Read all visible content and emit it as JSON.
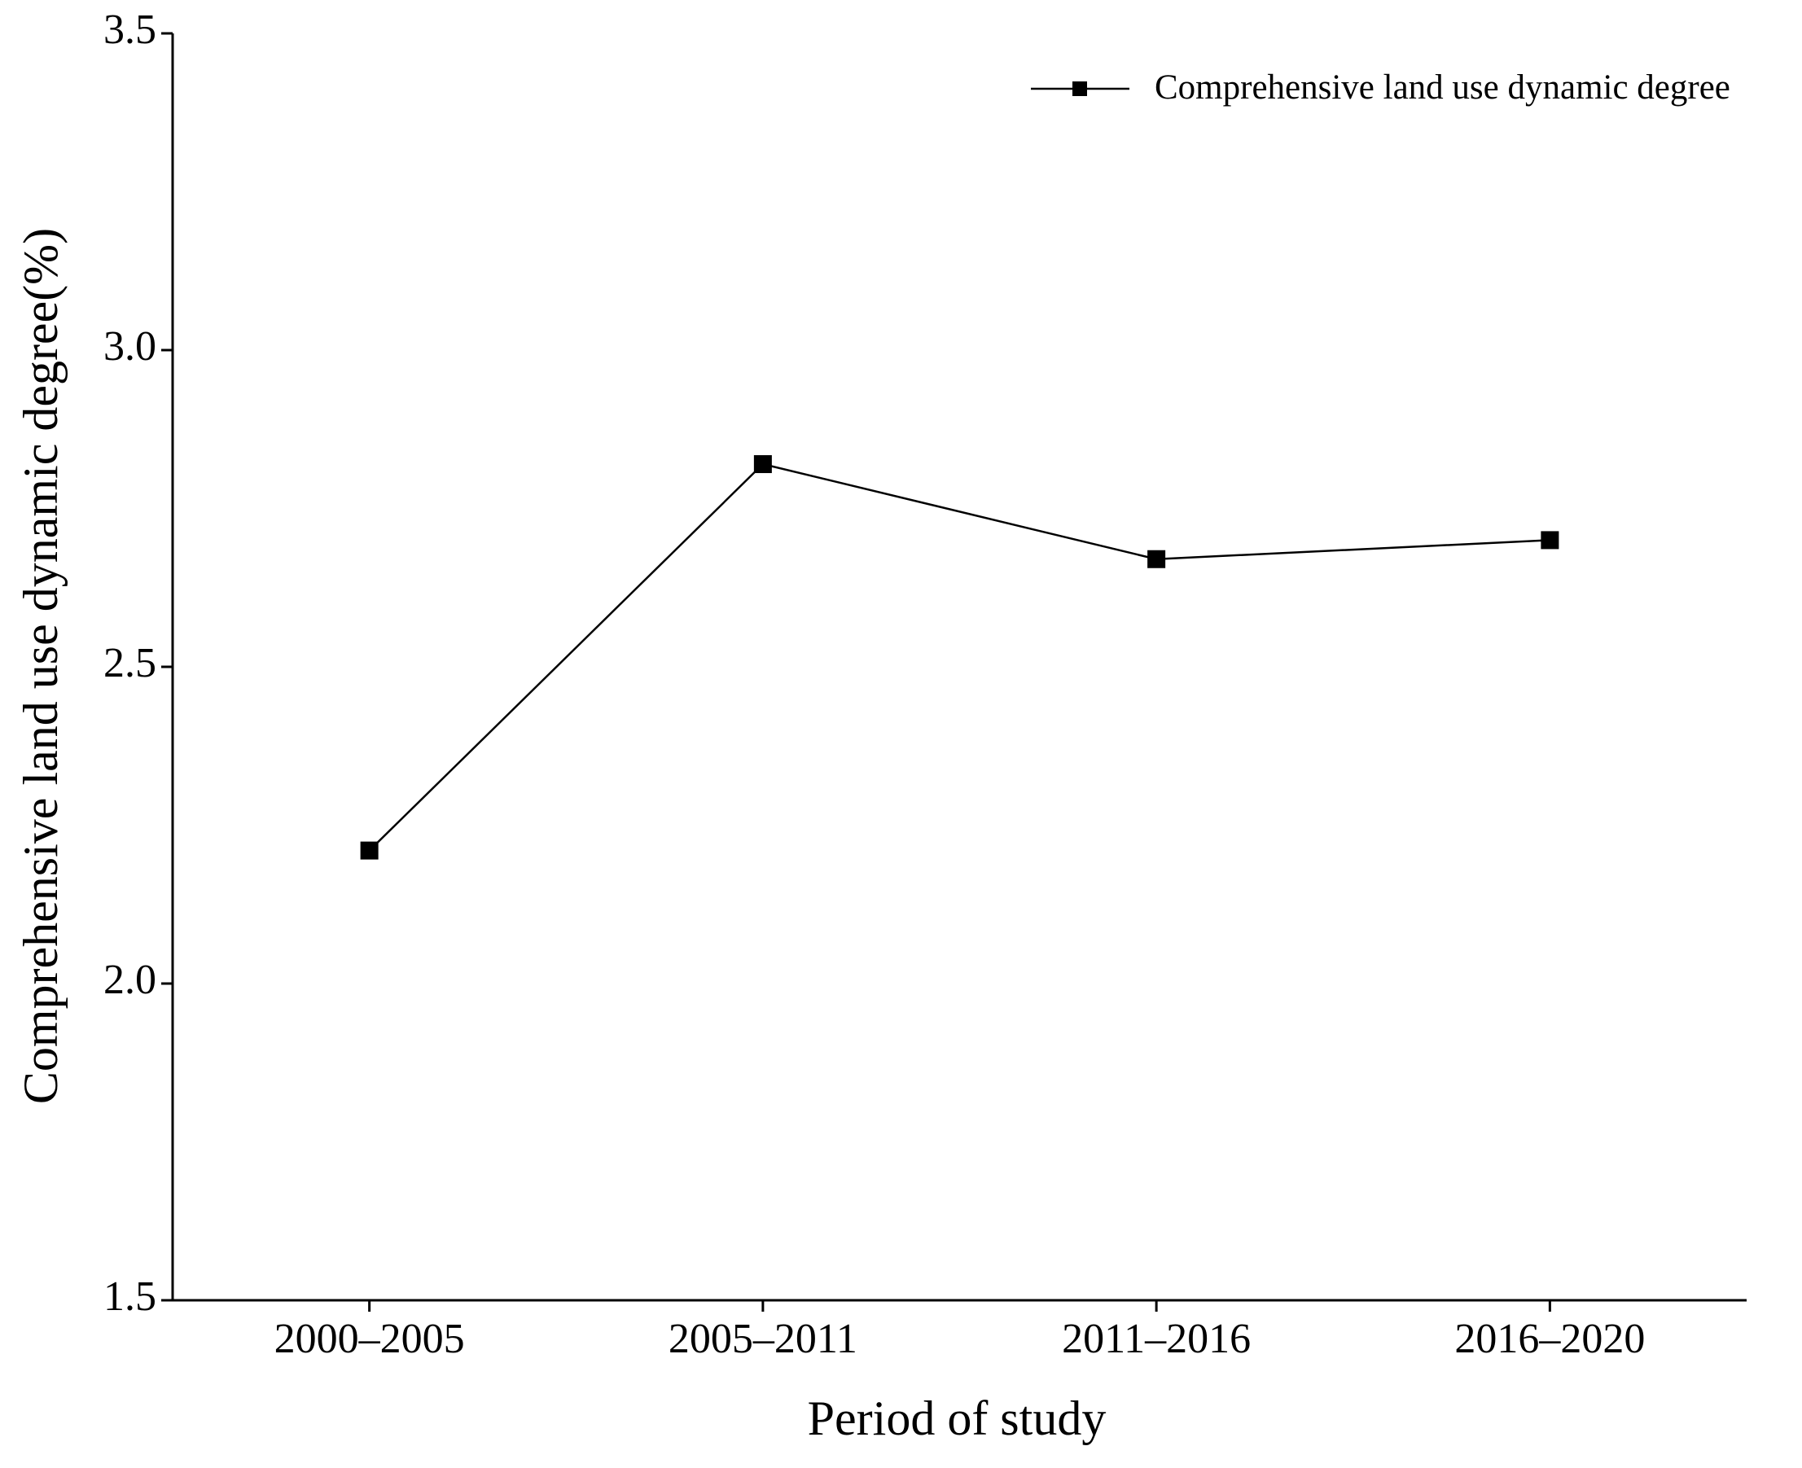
{
  "chart_data": {
    "type": "line",
    "x_label": "Period of study",
    "y_label": "Comprehensive land use dynamic degree(%)",
    "categories": [
      "2000–2005",
      "2005–2011",
      "2011–2016",
      "2016–2020"
    ],
    "series": [
      {
        "name": "Comprehensive land use dynamic degree",
        "color": "#000000",
        "marker": "square",
        "values": [
          2.21,
          2.82,
          2.67,
          2.7
        ]
      }
    ],
    "ylim": [
      1.5,
      3.5
    ],
    "yticks": [
      1.5,
      {
        "value": 2,
        "label": "2.0"
      },
      2.5,
      {
        "value": 3,
        "label": "3.0"
      },
      3.5
    ],
    "grid": false,
    "legend": "upper right"
  }
}
